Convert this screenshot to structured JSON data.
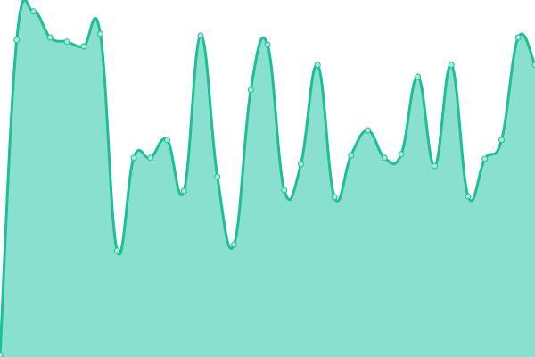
{
  "chart_data": {
    "type": "area",
    "title": "",
    "xlabel": "",
    "ylabel": "",
    "x": [
      0,
      1,
      2,
      3,
      4,
      5,
      6,
      7,
      8,
      9,
      10,
      11,
      12,
      13,
      14,
      15,
      16,
      17,
      18,
      19,
      20,
      21,
      22,
      23,
      24,
      25,
      26,
      27,
      28,
      29,
      30,
      31,
      32
    ],
    "values": [
      0.5,
      88.8,
      96.8,
      89.5,
      88.3,
      87,
      90.5,
      29.8,
      55.8,
      55.8,
      60.8,
      46.5,
      90,
      50.5,
      31.5,
      74.8,
      87.5,
      46.8,
      54,
      81.8,
      44.8,
      56.5,
      63.5,
      55.8,
      56.8,
      78.5,
      53.5,
      81.8,
      45,
      55.5,
      60.8,
      89.5,
      81.8
    ],
    "ylim": [
      0,
      100
    ],
    "xlim": [
      0,
      32
    ],
    "grid": false,
    "axes_visible": false,
    "legend": "none",
    "colors": {
      "line": "#1dbf95",
      "fill": "#89e0cf",
      "point_fill": "#a6e9dc",
      "point_stroke": "#1dbf95"
    }
  }
}
